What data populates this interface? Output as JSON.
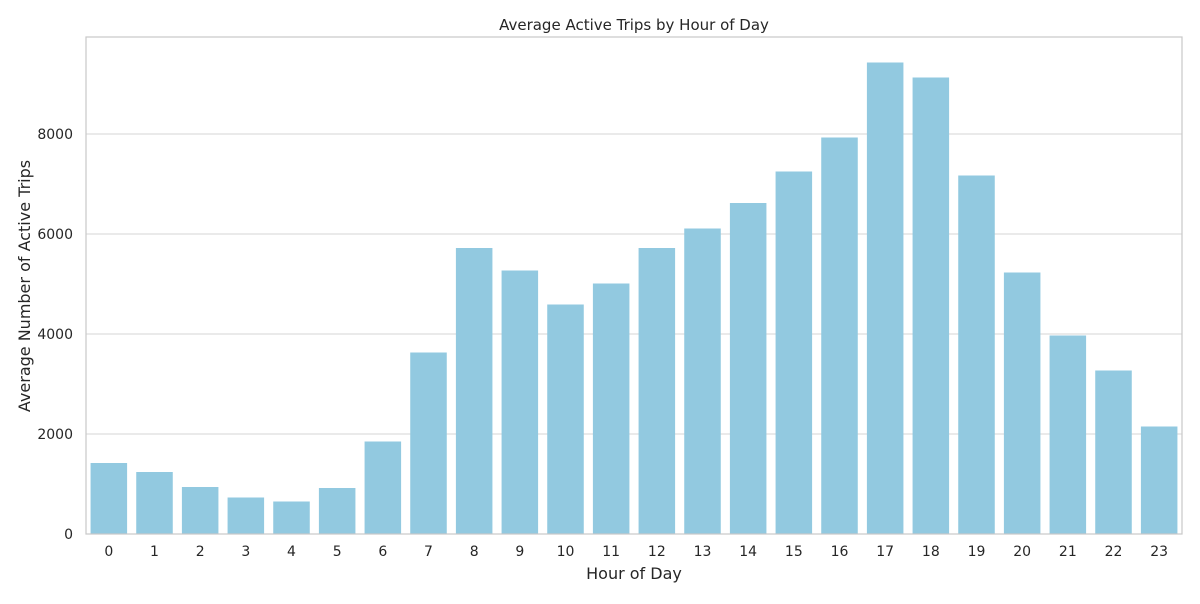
{
  "chart_data": {
    "type": "bar",
    "title": "Average Active Trips by Hour of Day",
    "xlabel": "Hour of Day",
    "ylabel": "Average Number of Active Trips",
    "categories": [
      "0",
      "1",
      "2",
      "3",
      "4",
      "5",
      "6",
      "7",
      "8",
      "9",
      "10",
      "11",
      "12",
      "13",
      "14",
      "15",
      "16",
      "17",
      "18",
      "19",
      "20",
      "21",
      "22",
      "23"
    ],
    "values": [
      1420,
      1240,
      940,
      730,
      650,
      920,
      1850,
      3630,
      5720,
      5270,
      4590,
      5010,
      5720,
      6110,
      6620,
      7250,
      7930,
      9430,
      9130,
      7170,
      5230,
      3970,
      3270,
      2150
    ],
    "ylim": [
      0,
      9940
    ],
    "yticks": [
      0,
      2000,
      4000,
      6000,
      8000
    ],
    "ytick_labels": [
      "0",
      "2000",
      "4000",
      "6000",
      "8000"
    ],
    "bar_color": "#92c9e0",
    "grid": true,
    "legend": "none"
  }
}
